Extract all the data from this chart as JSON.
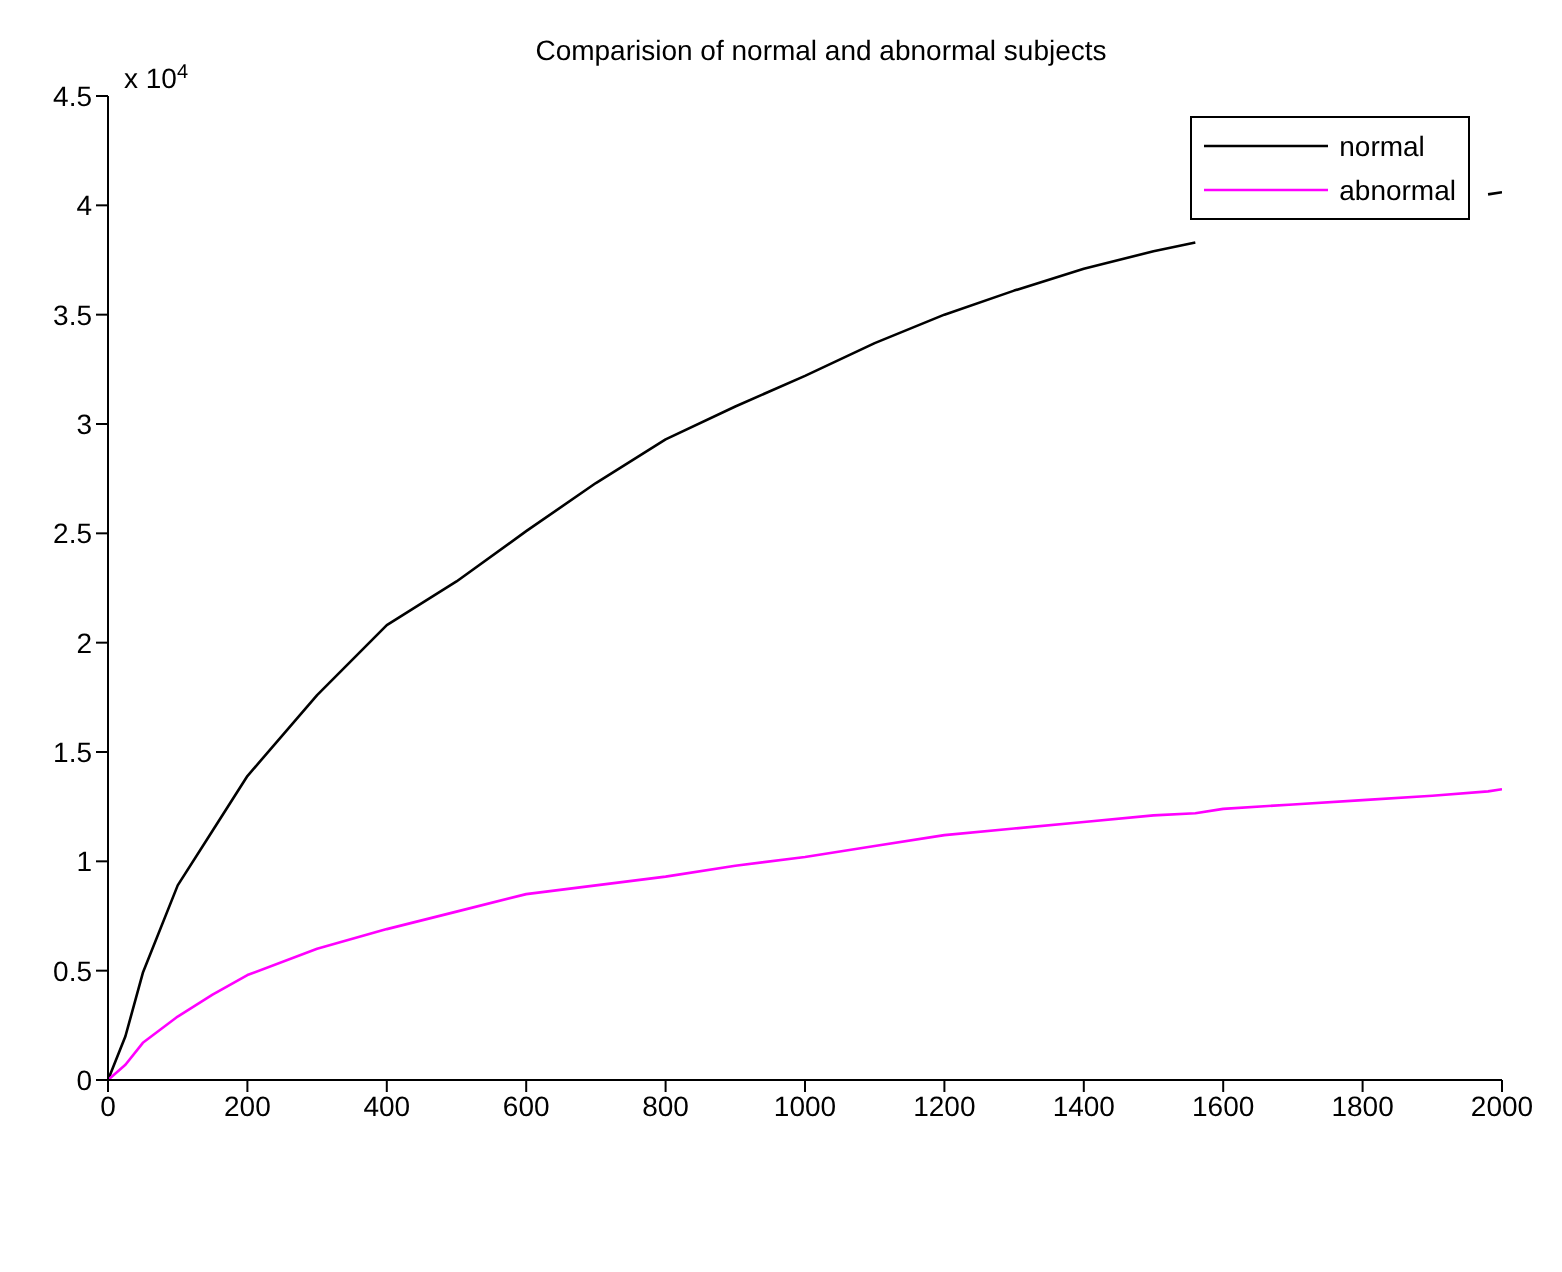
{
  "chart_data": {
    "type": "line",
    "title": "Comparision of normal and abnormal subjects",
    "annotations": [
      "x 10$^{4}$"
    ],
    "x": [
      0,
      25,
      50,
      100,
      150,
      200,
      300,
      400,
      500,
      600,
      700,
      800,
      900,
      1000,
      1100,
      1200,
      1300,
      1400,
      1500,
      1560,
      1600,
      1700,
      1800,
      1900,
      1980,
      2000
    ],
    "series": [
      {
        "name": "normal",
        "color": "#000000",
        "values": [
          0,
          0.2,
          0.49,
          0.89,
          1.14,
          1.39,
          1.76,
          2.08,
          2.28,
          2.51,
          2.73,
          2.93,
          3.08,
          3.22,
          3.37,
          3.5,
          3.61,
          3.71,
          3.79,
          3.83,
          null,
          null,
          null,
          null,
          4.05,
          4.06
        ]
      },
      {
        "name": "abnormal",
        "color": "#ff00ff",
        "values": [
          0,
          0.07,
          0.17,
          0.29,
          0.39,
          0.48,
          0.6,
          0.69,
          0.77,
          0.85,
          0.89,
          0.93,
          0.98,
          1.02,
          1.07,
          1.12,
          1.15,
          1.18,
          1.21,
          1.22,
          1.24,
          1.26,
          1.28,
          1.3,
          1.32,
          1.33
        ]
      }
    ],
    "xlim": [
      0,
      2000
    ],
    "xticks": [
      0,
      200,
      400,
      600,
      800,
      1000,
      1200,
      1400,
      1600,
      1800,
      2000
    ],
    "ylim": [
      0,
      4.5
    ],
    "yticks": [
      0,
      0.5,
      1,
      1.5,
      2,
      2.5,
      3,
      3.5,
      4,
      4.5
    ],
    "legend": "top right",
    "grid": false,
    "marker": "none",
    "line_style": "solid"
  }
}
